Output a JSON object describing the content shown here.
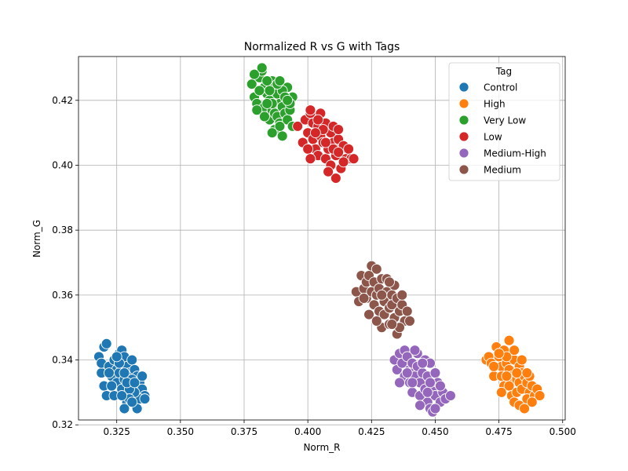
{
  "chart_data": {
    "type": "scatter",
    "title": "Normalized R vs G with Tags",
    "xlabel": "Norm_R",
    "ylabel": "Norm_G",
    "xlim": [
      0.31,
      0.501
    ],
    "ylim": [
      0.3215,
      0.4335
    ],
    "xticks": [
      "0.325",
      "0.350",
      "0.375",
      "0.400",
      "0.425",
      "0.450",
      "0.475",
      "0.500"
    ],
    "xtick_values": [
      0.325,
      0.35,
      0.375,
      0.4,
      0.425,
      0.45,
      0.475,
      0.5
    ],
    "yticks": [
      "0.32",
      "0.34",
      "0.36",
      "0.38",
      "0.40",
      "0.42"
    ],
    "ytick_values": [
      0.32,
      0.34,
      0.36,
      0.38,
      0.4,
      0.42
    ],
    "grid": true,
    "legend": {
      "title": "Tag",
      "placement": "top-right"
    },
    "series": [
      {
        "name": "Control",
        "color": "#1f77b4",
        "points": [
          [
            0.318,
            0.341
          ],
          [
            0.319,
            0.336
          ],
          [
            0.32,
            0.344
          ],
          [
            0.321,
            0.345
          ],
          [
            0.319,
            0.339
          ],
          [
            0.322,
            0.338
          ],
          [
            0.32,
            0.332
          ],
          [
            0.321,
            0.329
          ],
          [
            0.323,
            0.335
          ],
          [
            0.324,
            0.34
          ],
          [
            0.325,
            0.337
          ],
          [
            0.326,
            0.342
          ],
          [
            0.327,
            0.343
          ],
          [
            0.326,
            0.336
          ],
          [
            0.325,
            0.333
          ],
          [
            0.324,
            0.329
          ],
          [
            0.327,
            0.331
          ],
          [
            0.328,
            0.334
          ],
          [
            0.329,
            0.338
          ],
          [
            0.328,
            0.341
          ],
          [
            0.33,
            0.336
          ],
          [
            0.331,
            0.34
          ],
          [
            0.332,
            0.337
          ],
          [
            0.333,
            0.335
          ],
          [
            0.334,
            0.333
          ],
          [
            0.335,
            0.331
          ],
          [
            0.336,
            0.329
          ],
          [
            0.334,
            0.328
          ],
          [
            0.332,
            0.33
          ],
          [
            0.33,
            0.331
          ],
          [
            0.329,
            0.327
          ],
          [
            0.328,
            0.325
          ],
          [
            0.33,
            0.328
          ],
          [
            0.333,
            0.325
          ],
          [
            0.331,
            0.334
          ],
          [
            0.327,
            0.329
          ],
          [
            0.323,
            0.332
          ],
          [
            0.322,
            0.336
          ],
          [
            0.326,
            0.339
          ],
          [
            0.329,
            0.333
          ],
          [
            0.332,
            0.333
          ],
          [
            0.335,
            0.335
          ],
          [
            0.328,
            0.336
          ],
          [
            0.331,
            0.327
          ],
          [
            0.325,
            0.341
          ],
          [
            0.336,
            0.328
          ]
        ]
      },
      {
        "name": "High",
        "color": "#ff7f0e",
        "points": [
          [
            0.47,
            0.34
          ],
          [
            0.471,
            0.341
          ],
          [
            0.472,
            0.339
          ],
          [
            0.473,
            0.335
          ],
          [
            0.474,
            0.344
          ],
          [
            0.475,
            0.341
          ],
          [
            0.476,
            0.338
          ],
          [
            0.477,
            0.343
          ],
          [
            0.476,
            0.335
          ],
          [
            0.477,
            0.332
          ],
          [
            0.478,
            0.339
          ],
          [
            0.479,
            0.337
          ],
          [
            0.48,
            0.341
          ],
          [
            0.481,
            0.34
          ],
          [
            0.48,
            0.335
          ],
          [
            0.479,
            0.332
          ],
          [
            0.48,
            0.329
          ],
          [
            0.481,
            0.327
          ],
          [
            0.482,
            0.334
          ],
          [
            0.483,
            0.338
          ],
          [
            0.484,
            0.336
          ],
          [
            0.483,
            0.333
          ],
          [
            0.482,
            0.33
          ],
          [
            0.483,
            0.326
          ],
          [
            0.484,
            0.331
          ],
          [
            0.485,
            0.335
          ],
          [
            0.486,
            0.333
          ],
          [
            0.487,
            0.33
          ],
          [
            0.486,
            0.328
          ],
          [
            0.485,
            0.325
          ],
          [
            0.487,
            0.335
          ],
          [
            0.488,
            0.332
          ],
          [
            0.489,
            0.329
          ],
          [
            0.49,
            0.331
          ],
          [
            0.491,
            0.329
          ],
          [
            0.481,
            0.343
          ],
          [
            0.478,
            0.341
          ],
          [
            0.475,
            0.342
          ],
          [
            0.479,
            0.346
          ],
          [
            0.482,
            0.336
          ],
          [
            0.484,
            0.34
          ],
          [
            0.486,
            0.336
          ],
          [
            0.478,
            0.335
          ],
          [
            0.476,
            0.33
          ],
          [
            0.488,
            0.327
          ],
          [
            0.473,
            0.338
          ]
        ]
      },
      {
        "name": "Very Low",
        "color": "#2ca02c",
        "points": [
          [
            0.378,
            0.425
          ],
          [
            0.379,
            0.421
          ],
          [
            0.38,
            0.419
          ],
          [
            0.381,
            0.427
          ],
          [
            0.382,
            0.429
          ],
          [
            0.382,
            0.43
          ],
          [
            0.383,
            0.424
          ],
          [
            0.384,
            0.422
          ],
          [
            0.383,
            0.418
          ],
          [
            0.385,
            0.42
          ],
          [
            0.386,
            0.426
          ],
          [
            0.387,
            0.424
          ],
          [
            0.386,
            0.417
          ],
          [
            0.385,
            0.414
          ],
          [
            0.387,
            0.416
          ],
          [
            0.388,
            0.422
          ],
          [
            0.389,
            0.419
          ],
          [
            0.388,
            0.415
          ],
          [
            0.387,
            0.411
          ],
          [
            0.389,
            0.413
          ],
          [
            0.39,
            0.418
          ],
          [
            0.391,
            0.416
          ],
          [
            0.39,
            0.409
          ],
          [
            0.392,
            0.414
          ],
          [
            0.393,
            0.417
          ],
          [
            0.394,
            0.421
          ],
          [
            0.392,
            0.424
          ],
          [
            0.39,
            0.423
          ],
          [
            0.388,
            0.425
          ],
          [
            0.385,
            0.423
          ],
          [
            0.384,
            0.426
          ],
          [
            0.381,
            0.423
          ],
          [
            0.38,
            0.417
          ],
          [
            0.383,
            0.415
          ],
          [
            0.386,
            0.419
          ],
          [
            0.391,
            0.421
          ],
          [
            0.393,
            0.419
          ],
          [
            0.394,
            0.412
          ],
          [
            0.389,
            0.412
          ],
          [
            0.386,
            0.41
          ],
          [
            0.384,
            0.419
          ],
          [
            0.389,
            0.426
          ],
          [
            0.392,
            0.42
          ],
          [
            0.379,
            0.428
          ]
        ]
      },
      {
        "name": "Low",
        "color": "#d62728",
        "points": [
          [
            0.396,
            0.412
          ],
          [
            0.398,
            0.407
          ],
          [
            0.399,
            0.414
          ],
          [
            0.4,
            0.41
          ],
          [
            0.401,
            0.416
          ],
          [
            0.401,
            0.417
          ],
          [
            0.402,
            0.413
          ],
          [
            0.402,
            0.408
          ],
          [
            0.403,
            0.405
          ],
          [
            0.404,
            0.412
          ],
          [
            0.405,
            0.409
          ],
          [
            0.404,
            0.403
          ],
          [
            0.405,
            0.416
          ],
          [
            0.406,
            0.407
          ],
          [
            0.407,
            0.413
          ],
          [
            0.407,
            0.402
          ],
          [
            0.408,
            0.405
          ],
          [
            0.409,
            0.41
          ],
          [
            0.409,
            0.4
          ],
          [
            0.41,
            0.407
          ],
          [
            0.41,
            0.412
          ],
          [
            0.411,
            0.403
          ],
          [
            0.411,
            0.396
          ],
          [
            0.412,
            0.408
          ],
          [
            0.413,
            0.405
          ],
          [
            0.413,
            0.399
          ],
          [
            0.414,
            0.406
          ],
          [
            0.415,
            0.402
          ],
          [
            0.416,
            0.405
          ],
          [
            0.417,
            0.402
          ],
          [
            0.418,
            0.402
          ],
          [
            0.412,
            0.411
          ],
          [
            0.408,
            0.398
          ],
          [
            0.406,
            0.411
          ],
          [
            0.403,
            0.41
          ],
          [
            0.4,
            0.405
          ],
          [
            0.401,
            0.402
          ],
          [
            0.404,
            0.414
          ],
          [
            0.41,
            0.405
          ],
          [
            0.414,
            0.401
          ],
          [
            0.407,
            0.407
          ],
          [
            0.412,
            0.404
          ]
        ]
      },
      {
        "name": "Medium-High",
        "color": "#9467bd",
        "points": [
          [
            0.434,
            0.34
          ],
          [
            0.435,
            0.337
          ],
          [
            0.436,
            0.342
          ],
          [
            0.437,
            0.339
          ],
          [
            0.438,
            0.343
          ],
          [
            0.438,
            0.335
          ],
          [
            0.439,
            0.341
          ],
          [
            0.44,
            0.337
          ],
          [
            0.44,
            0.333
          ],
          [
            0.441,
            0.339
          ],
          [
            0.442,
            0.335
          ],
          [
            0.441,
            0.33
          ],
          [
            0.443,
            0.338
          ],
          [
            0.443,
            0.342
          ],
          [
            0.444,
            0.333
          ],
          [
            0.444,
            0.329
          ],
          [
            0.445,
            0.336
          ],
          [
            0.446,
            0.34
          ],
          [
            0.446,
            0.331
          ],
          [
            0.447,
            0.327
          ],
          [
            0.447,
            0.335
          ],
          [
            0.448,
            0.339
          ],
          [
            0.448,
            0.325
          ],
          [
            0.449,
            0.324
          ],
          [
            0.449,
            0.331
          ],
          [
            0.45,
            0.336
          ],
          [
            0.45,
            0.329
          ],
          [
            0.451,
            0.333
          ],
          [
            0.452,
            0.327
          ],
          [
            0.453,
            0.33
          ],
          [
            0.454,
            0.328
          ],
          [
            0.456,
            0.329
          ],
          [
            0.442,
            0.343
          ],
          [
            0.445,
            0.339
          ],
          [
            0.439,
            0.336
          ],
          [
            0.436,
            0.333
          ],
          [
            0.441,
            0.333
          ],
          [
            0.448,
            0.333
          ],
          [
            0.452,
            0.332
          ],
          [
            0.444,
            0.326
          ],
          [
            0.447,
            0.33
          ],
          [
            0.45,
            0.325
          ]
        ]
      },
      {
        "name": "Medium",
        "color": "#8c564b",
        "points": [
          [
            0.419,
            0.361
          ],
          [
            0.42,
            0.358
          ],
          [
            0.421,
            0.366
          ],
          [
            0.422,
            0.362
          ],
          [
            0.423,
            0.364
          ],
          [
            0.423,
            0.359
          ],
          [
            0.424,
            0.366
          ],
          [
            0.425,
            0.369
          ],
          [
            0.425,
            0.361
          ],
          [
            0.426,
            0.357
          ],
          [
            0.426,
            0.364
          ],
          [
            0.427,
            0.368
          ],
          [
            0.427,
            0.36
          ],
          [
            0.428,
            0.355
          ],
          [
            0.428,
            0.362
          ],
          [
            0.429,
            0.365
          ],
          [
            0.429,
            0.35
          ],
          [
            0.43,
            0.358
          ],
          [
            0.43,
            0.354
          ],
          [
            0.431,
            0.365
          ],
          [
            0.431,
            0.361
          ],
          [
            0.432,
            0.356
          ],
          [
            0.432,
            0.351
          ],
          [
            0.433,
            0.36
          ],
          [
            0.433,
            0.357
          ],
          [
            0.434,
            0.363
          ],
          [
            0.434,
            0.353
          ],
          [
            0.435,
            0.348
          ],
          [
            0.435,
            0.359
          ],
          [
            0.436,
            0.355
          ],
          [
            0.437,
            0.357
          ],
          [
            0.438,
            0.352
          ],
          [
            0.439,
            0.355
          ],
          [
            0.44,
            0.352
          ],
          [
            0.424,
            0.354
          ],
          [
            0.427,
            0.352
          ],
          [
            0.432,
            0.364
          ],
          [
            0.436,
            0.35
          ],
          [
            0.422,
            0.359
          ],
          [
            0.429,
            0.36
          ],
          [
            0.437,
            0.36
          ],
          [
            0.433,
            0.351
          ]
        ]
      }
    ]
  }
}
